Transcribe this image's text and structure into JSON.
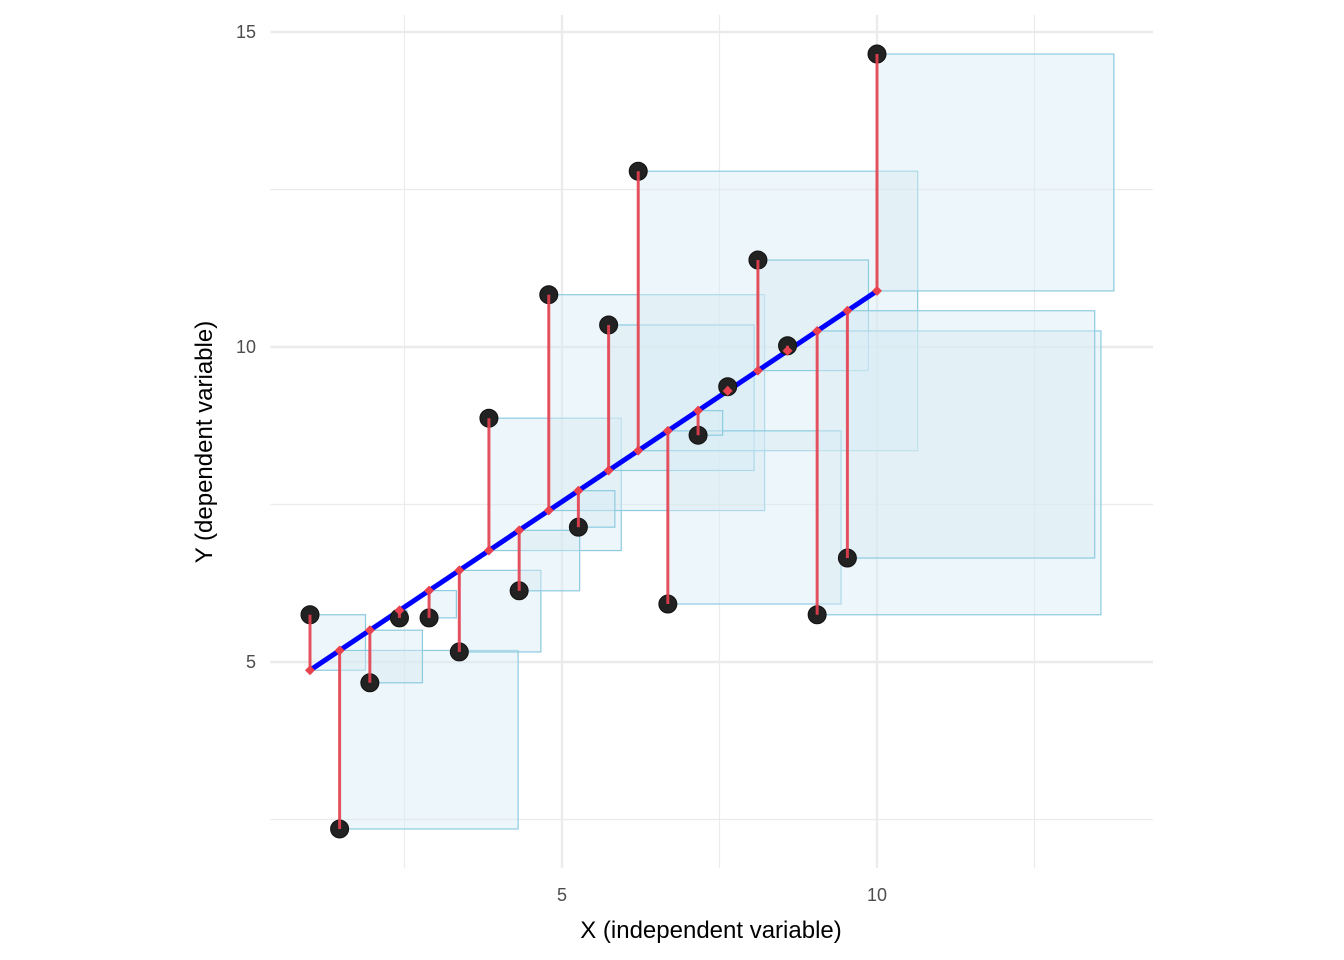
{
  "chart_data": {
    "type": "scatter",
    "title": "",
    "xlabel": "X (independent variable)",
    "ylabel": "Y (dependent variable)",
    "xlim": [
      0.37,
      14.38
    ],
    "ylim": [
      1.73,
      15.27
    ],
    "x_ticks": [
      5,
      10
    ],
    "x_tick_labels": [
      "5",
      "10"
    ],
    "y_ticks": [
      5,
      10,
      15
    ],
    "y_tick_labels": [
      "5",
      "10",
      "15"
    ],
    "x_minor": [
      2.5,
      7.5,
      12.5
    ],
    "y_minor": [
      2.5,
      7.5,
      12.5
    ],
    "grid": true,
    "points": {
      "x": [
        1.0,
        1.47,
        1.95,
        2.42,
        2.89,
        3.37,
        3.84,
        4.32,
        4.79,
        5.26,
        5.74,
        6.21,
        6.68,
        7.16,
        7.63,
        8.11,
        8.58,
        9.05,
        9.53,
        10.0
      ],
      "y": [
        5.75,
        2.35,
        4.67,
        5.7,
        5.7,
        5.16,
        8.87,
        6.13,
        10.83,
        7.14,
        10.35,
        12.79,
        5.92,
        8.6,
        9.37,
        11.38,
        10.02,
        5.75,
        6.65,
        14.65
      ]
    },
    "fit": {
      "intercept": 4.2,
      "slope": 0.669
    },
    "annotations": "residual segments and squared-residual squares",
    "colors": {
      "points": "#222222",
      "fit_line": "#0000ff",
      "residuals": "#e8414f",
      "squares_fill": "#d6eaf5",
      "squares_stroke": "#8ccbe0",
      "grid": "#ebebeb"
    }
  }
}
